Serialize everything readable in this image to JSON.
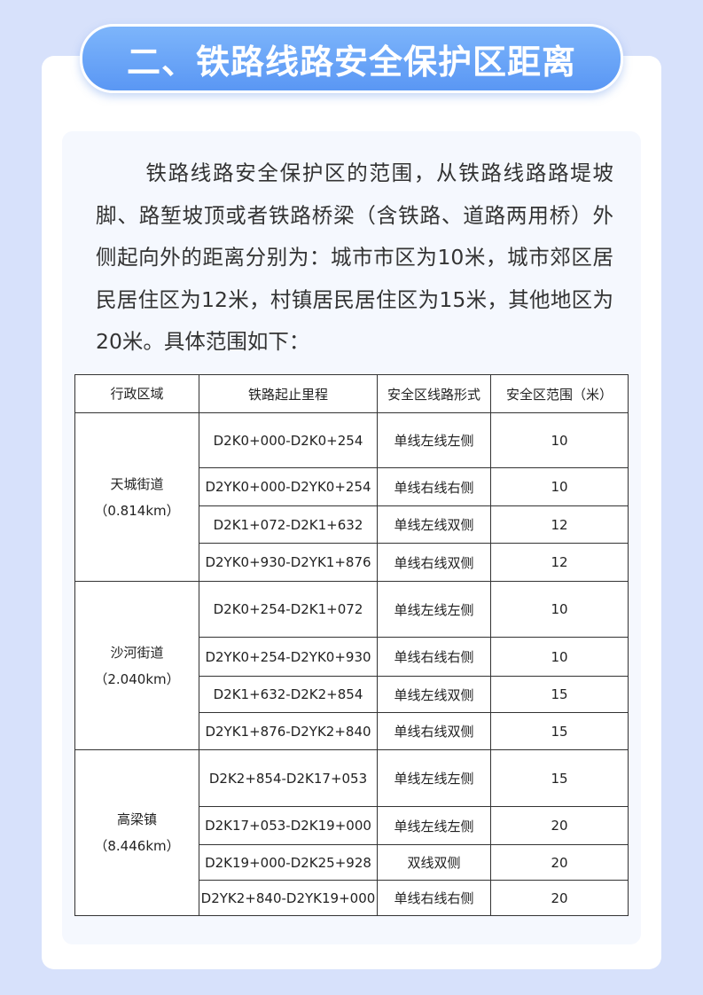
{
  "title": "二、铁路线路安全保护区距离",
  "paragraph": "铁路线路安全保护区的范围，从铁路线路路堤坡脚、路堑坡顶或者铁路桥梁（含铁路、道路两用桥）外侧起向外的距离分别为：城市市区为10米，城市郊区居民居住区为12米，村镇居民居住区为15米，其他地区为20米。具体范围如下：",
  "table": {
    "headers": [
      "行政区域",
      "铁路起止里程",
      "安全区线路形式",
      "安全区范围（米）"
    ],
    "groups": [
      {
        "region": "天城街道",
        "length": "（0.814km）",
        "rows": [
          {
            "mileage": "D2K0+000-D2K0+254",
            "form": "单线左线左侧",
            "range": "10",
            "h": 62
          },
          {
            "mileage": "D2YK0+000-D2YK0+254",
            "form": "单线右线右侧",
            "range": "10",
            "h": 43
          },
          {
            "mileage": "D2K1+072-D2K1+632",
            "form": "单线左线双侧",
            "range": "12",
            "h": 42
          },
          {
            "mileage": "D2YK0+930-D2YK1+876",
            "form": "单线右线双侧",
            "range": "12",
            "h": 43
          }
        ]
      },
      {
        "region": "沙河街道",
        "length": "（2.040km）",
        "rows": [
          {
            "mileage": "D2K0+254-D2K1+072",
            "form": "单线左线左侧",
            "range": "10",
            "h": 63
          },
          {
            "mileage": "D2YK0+254-D2YK0+930",
            "form": "单线右线右侧",
            "range": "10",
            "h": 44
          },
          {
            "mileage": "D2K1+632-D2K2+854",
            "form": "单线左线双侧",
            "range": "15",
            "h": 41
          },
          {
            "mileage": "D2YK1+876-D2YK2+840",
            "form": "单线右线双侧",
            "range": "15",
            "h": 42
          }
        ]
      },
      {
        "region": "高梁镇",
        "length": "（8.446km）",
        "rows": [
          {
            "mileage": "D2K2+854-D2K17+053",
            "form": "单线左线左侧",
            "range": "15",
            "h": 64
          },
          {
            "mileage": "D2K17+053-D2K19+000",
            "form": "单线左线左侧",
            "range": "20",
            "h": 43
          },
          {
            "mileage": "D2K19+000-D2K25+928",
            "form": "双线双侧",
            "range": "20",
            "h": 40
          },
          {
            "mileage": "D2YK2+840-D2YK19+000",
            "form": "单线右线右侧",
            "range": "20",
            "h": 40
          }
        ]
      }
    ]
  }
}
